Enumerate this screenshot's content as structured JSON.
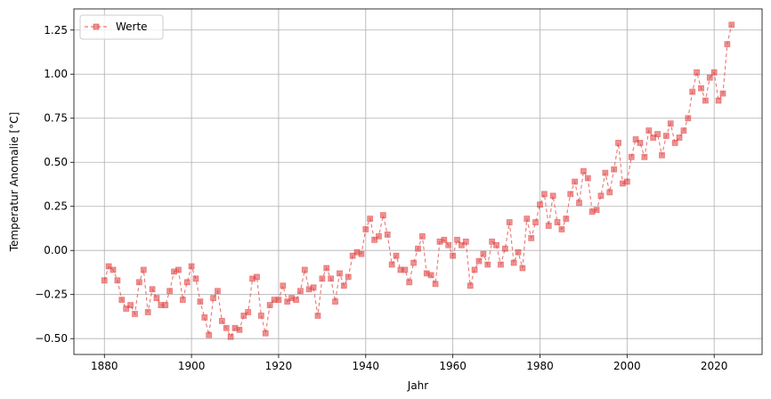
{
  "chart_data": {
    "type": "line",
    "xlabel": "Jahr",
    "ylabel": "Temperatur Anomalie [°C]",
    "xlim": [
      1873,
      2031
    ],
    "ylim": [
      -0.59,
      1.37
    ],
    "xticks": [
      1880,
      1900,
      1920,
      1940,
      1960,
      1980,
      2000,
      2020
    ],
    "xtick_labels": [
      "1880",
      "1900",
      "1920",
      "1940",
      "1960",
      "1980",
      "2000",
      "2020"
    ],
    "yticks": [
      -0.5,
      -0.25,
      0.0,
      0.25,
      0.5,
      0.75,
      1.0,
      1.25
    ],
    "ytick_labels": [
      "−0.50",
      "−0.25",
      "0.00",
      "0.25",
      "0.50",
      "0.75",
      "1.00",
      "1.25"
    ],
    "grid": true,
    "legend_position": "top-left",
    "series": [
      {
        "name": "Werte",
        "color": "#e24a4a",
        "line_style": "dashed",
        "marker": "square",
        "x": [
          1880,
          1881,
          1882,
          1883,
          1884,
          1885,
          1886,
          1887,
          1888,
          1889,
          1890,
          1891,
          1892,
          1893,
          1894,
          1895,
          1896,
          1897,
          1898,
          1899,
          1900,
          1901,
          1902,
          1903,
          1904,
          1905,
          1906,
          1907,
          1908,
          1909,
          1910,
          1911,
          1912,
          1913,
          1914,
          1915,
          1916,
          1917,
          1918,
          1919,
          1920,
          1921,
          1922,
          1923,
          1924,
          1925,
          1926,
          1927,
          1928,
          1929,
          1930,
          1931,
          1932,
          1933,
          1934,
          1935,
          1936,
          1937,
          1938,
          1939,
          1940,
          1941,
          1942,
          1943,
          1944,
          1945,
          1946,
          1947,
          1948,
          1949,
          1950,
          1951,
          1952,
          1953,
          1954,
          1955,
          1956,
          1957,
          1958,
          1959,
          1960,
          1961,
          1962,
          1963,
          1964,
          1965,
          1966,
          1967,
          1968,
          1969,
          1970,
          1971,
          1972,
          1973,
          1974,
          1975,
          1976,
          1977,
          1978,
          1979,
          1980,
          1981,
          1982,
          1983,
          1984,
          1985,
          1986,
          1987,
          1988,
          1989,
          1990,
          1991,
          1992,
          1993,
          1994,
          1995,
          1996,
          1997,
          1998,
          1999,
          2000,
          2001,
          2002,
          2003,
          2004,
          2005,
          2006,
          2007,
          2008,
          2009,
          2010,
          2011,
          2012,
          2013,
          2014,
          2015,
          2016,
          2017,
          2018,
          2019,
          2020,
          2021,
          2022,
          2023,
          2024
        ],
        "y": [
          -0.17,
          -0.09,
          -0.11,
          -0.17,
          -0.28,
          -0.33,
          -0.31,
          -0.36,
          -0.18,
          -0.11,
          -0.35,
          -0.22,
          -0.27,
          -0.31,
          -0.31,
          -0.23,
          -0.12,
          -0.11,
          -0.28,
          -0.18,
          -0.09,
          -0.16,
          -0.29,
          -0.38,
          -0.48,
          -0.27,
          -0.23,
          -0.4,
          -0.44,
          -0.49,
          -0.44,
          -0.45,
          -0.37,
          -0.35,
          -0.16,
          -0.15,
          -0.37,
          -0.47,
          -0.31,
          -0.28,
          -0.28,
          -0.2,
          -0.29,
          -0.27,
          -0.28,
          -0.23,
          -0.11,
          -0.22,
          -0.21,
          -0.37,
          -0.16,
          -0.1,
          -0.16,
          -0.29,
          -0.13,
          -0.2,
          -0.15,
          -0.03,
          -0.01,
          -0.02,
          0.12,
          0.18,
          0.06,
          0.08,
          0.2,
          0.09,
          -0.08,
          -0.03,
          -0.11,
          -0.11,
          -0.18,
          -0.07,
          0.01,
          0.08,
          -0.13,
          -0.14,
          -0.19,
          0.05,
          0.06,
          0.03,
          -0.03,
          0.06,
          0.03,
          0.05,
          -0.2,
          -0.11,
          -0.06,
          -0.02,
          -0.08,
          0.05,
          0.03,
          -0.08,
          0.01,
          0.16,
          -0.07,
          -0.01,
          -0.1,
          0.18,
          0.07,
          0.16,
          0.26,
          0.32,
          0.14,
          0.31,
          0.16,
          0.12,
          0.18,
          0.32,
          0.39,
          0.27,
          0.45,
          0.41,
          0.22,
          0.23,
          0.31,
          0.44,
          0.33,
          0.46,
          0.61,
          0.38,
          0.39,
          0.53,
          0.63,
          0.61,
          0.53,
          0.68,
          0.64,
          0.66,
          0.54,
          0.65,
          0.72,
          0.61,
          0.64,
          0.68,
          0.75,
          0.9,
          1.01,
          0.92,
          0.85,
          0.98,
          1.01,
          0.85,
          0.89,
          1.17,
          1.28
        ]
      }
    ]
  }
}
